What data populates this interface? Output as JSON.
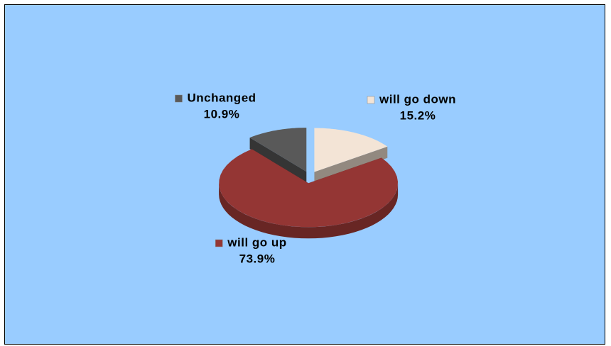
{
  "chart_data": {
    "type": "pie",
    "categories": [
      "will go down",
      "will go up",
      "Unchanged"
    ],
    "values": [
      15.2,
      73.9,
      10.9
    ],
    "value_labels": [
      "15.2%",
      "73.9%",
      "10.9%"
    ],
    "colors": [
      "#f3e4d6",
      "#943634",
      "#595959"
    ]
  }
}
